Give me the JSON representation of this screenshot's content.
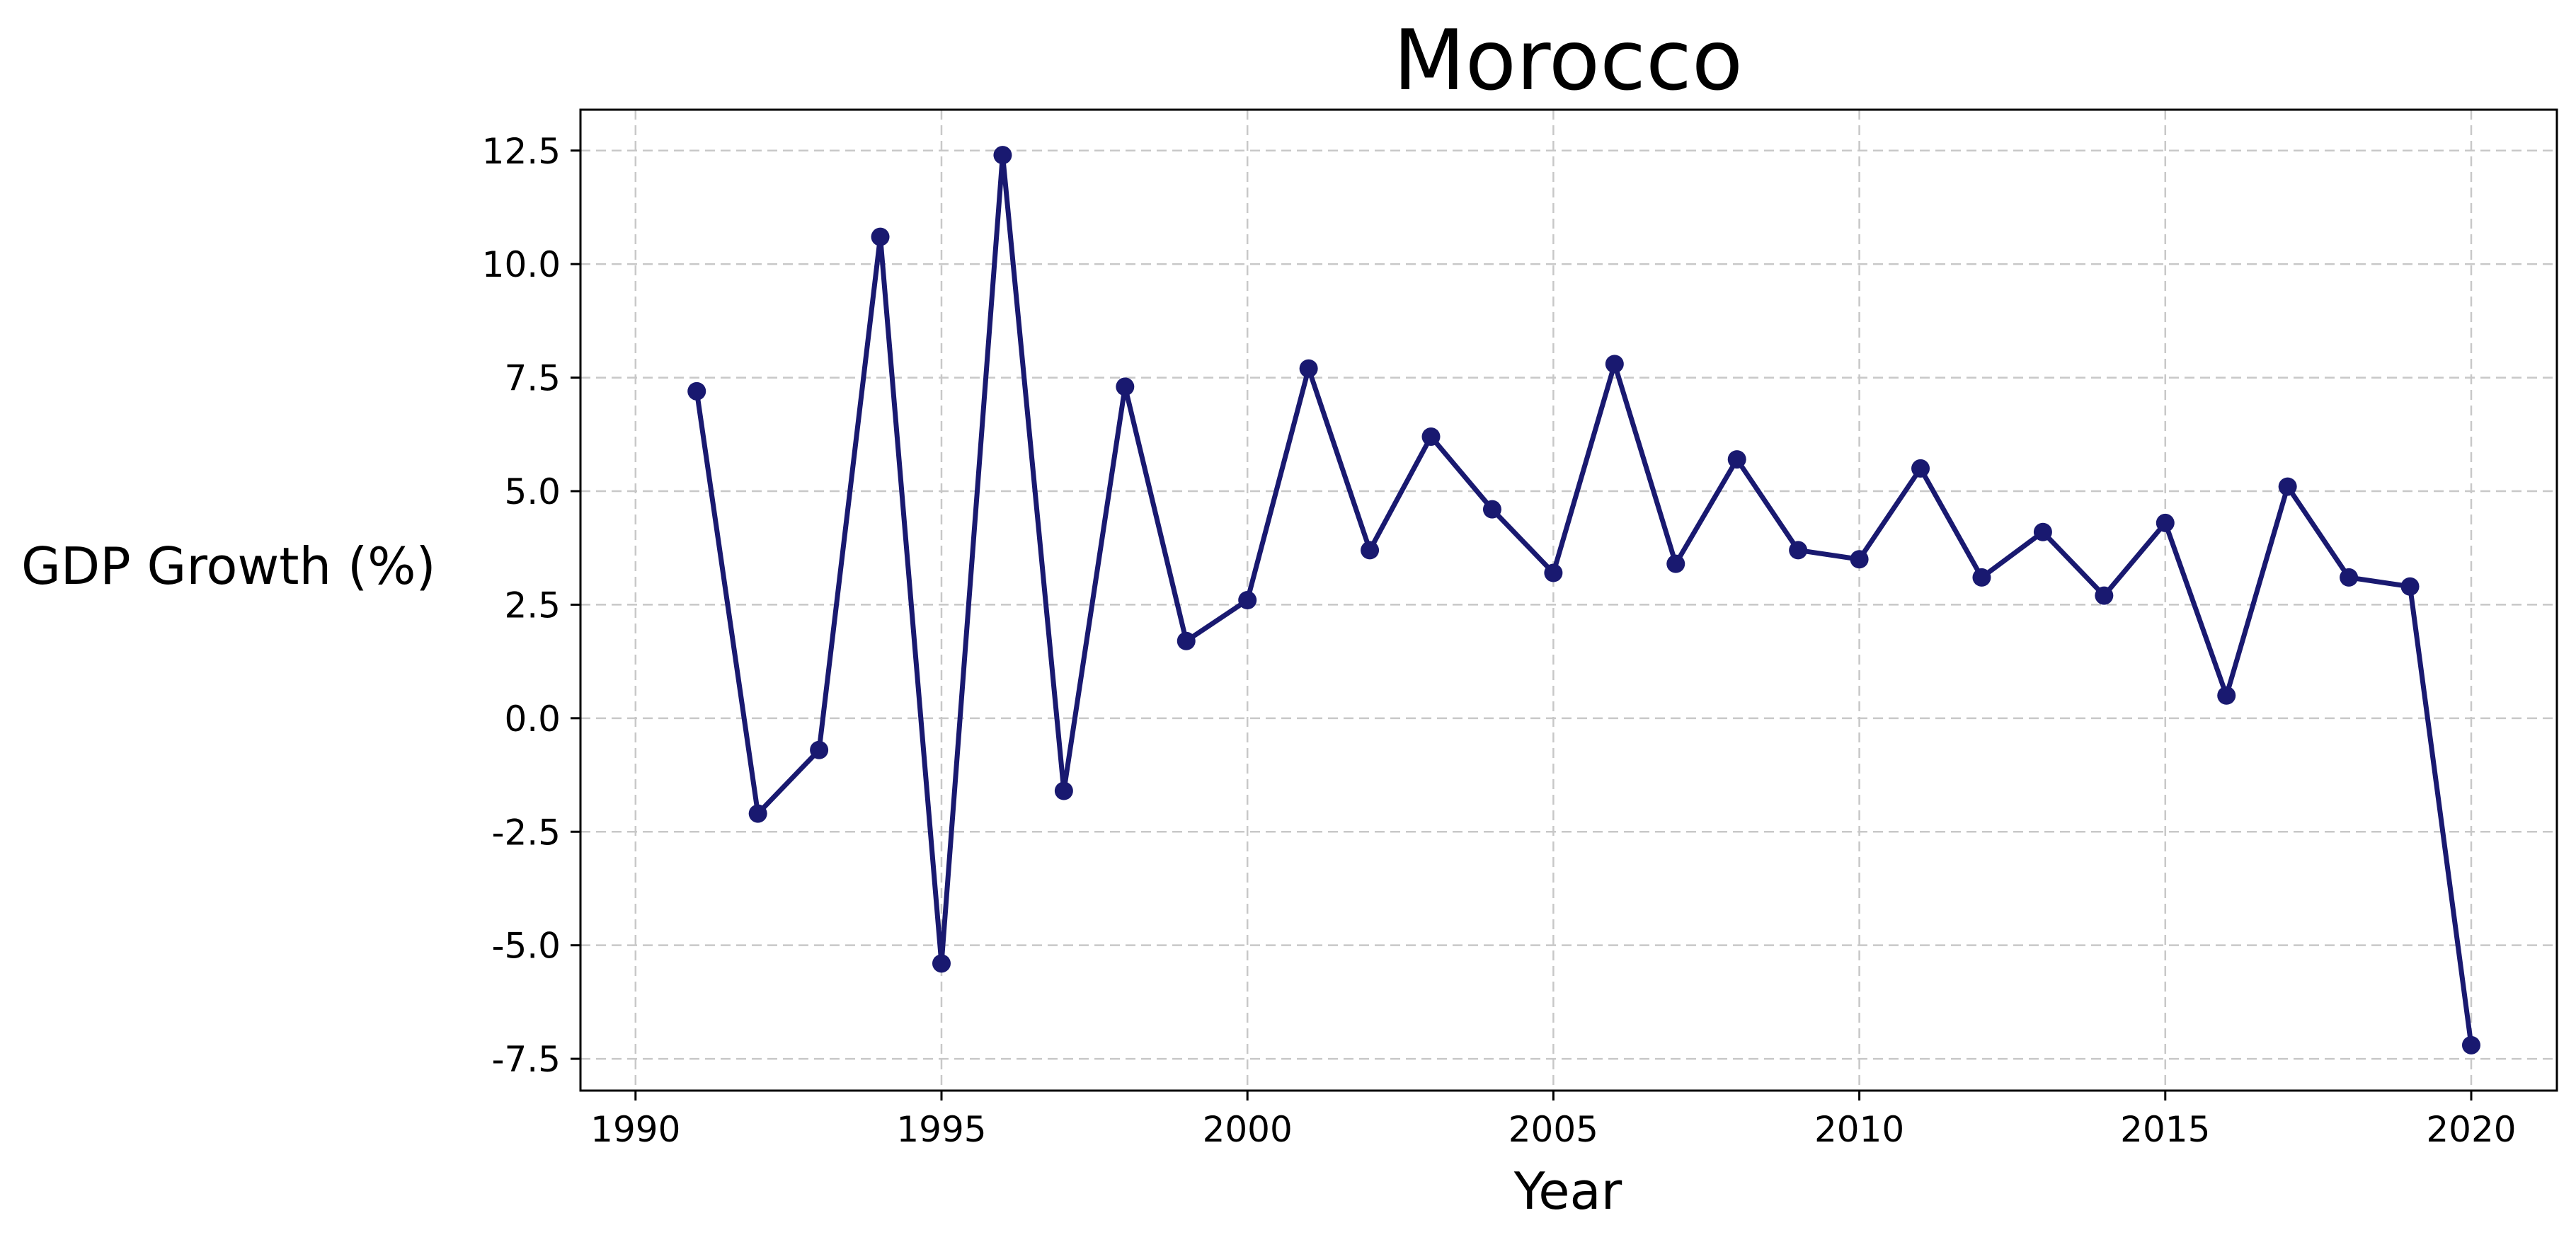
{
  "chart_data": {
    "type": "line",
    "title": "Morocco",
    "xlabel": "Year",
    "ylabel": "GDP Growth (%)",
    "xlim": [
      1989.1,
      2021.4
    ],
    "ylim": [
      -8.2,
      13.4
    ],
    "xticks": [
      1990,
      1995,
      2000,
      2005,
      2010,
      2015,
      2020
    ],
    "yticks": [
      12.5,
      10.0,
      7.5,
      5.0,
      2.5,
      0.0,
      -2.5,
      -5.0,
      -7.5
    ],
    "ytick_labels": [
      "12.5",
      "10.0",
      "7.5",
      "5.0",
      "2.5",
      "0.0",
      "-2.5",
      "-5.0",
      "-7.5"
    ],
    "grid": true,
    "series": [
      {
        "color": "#191970",
        "x": [
          1991,
          1992,
          1993,
          1994,
          1995,
          1996,
          1997,
          1998,
          1999,
          2000,
          2001,
          2002,
          2003,
          2004,
          2005,
          2006,
          2007,
          2008,
          2009,
          2010,
          2011,
          2012,
          2013,
          2014,
          2015,
          2016,
          2017,
          2018,
          2019,
          2020
        ],
        "values": [
          7.2,
          -2.1,
          -0.7,
          10.6,
          -5.4,
          12.4,
          -1.6,
          7.3,
          1.7,
          2.6,
          7.7,
          3.7,
          6.2,
          4.6,
          3.2,
          7.8,
          3.4,
          5.7,
          3.7,
          3.5,
          5.5,
          3.1,
          4.1,
          2.7,
          4.3,
          0.5,
          5.1,
          3.1,
          2.9,
          -7.2
        ]
      }
    ]
  }
}
